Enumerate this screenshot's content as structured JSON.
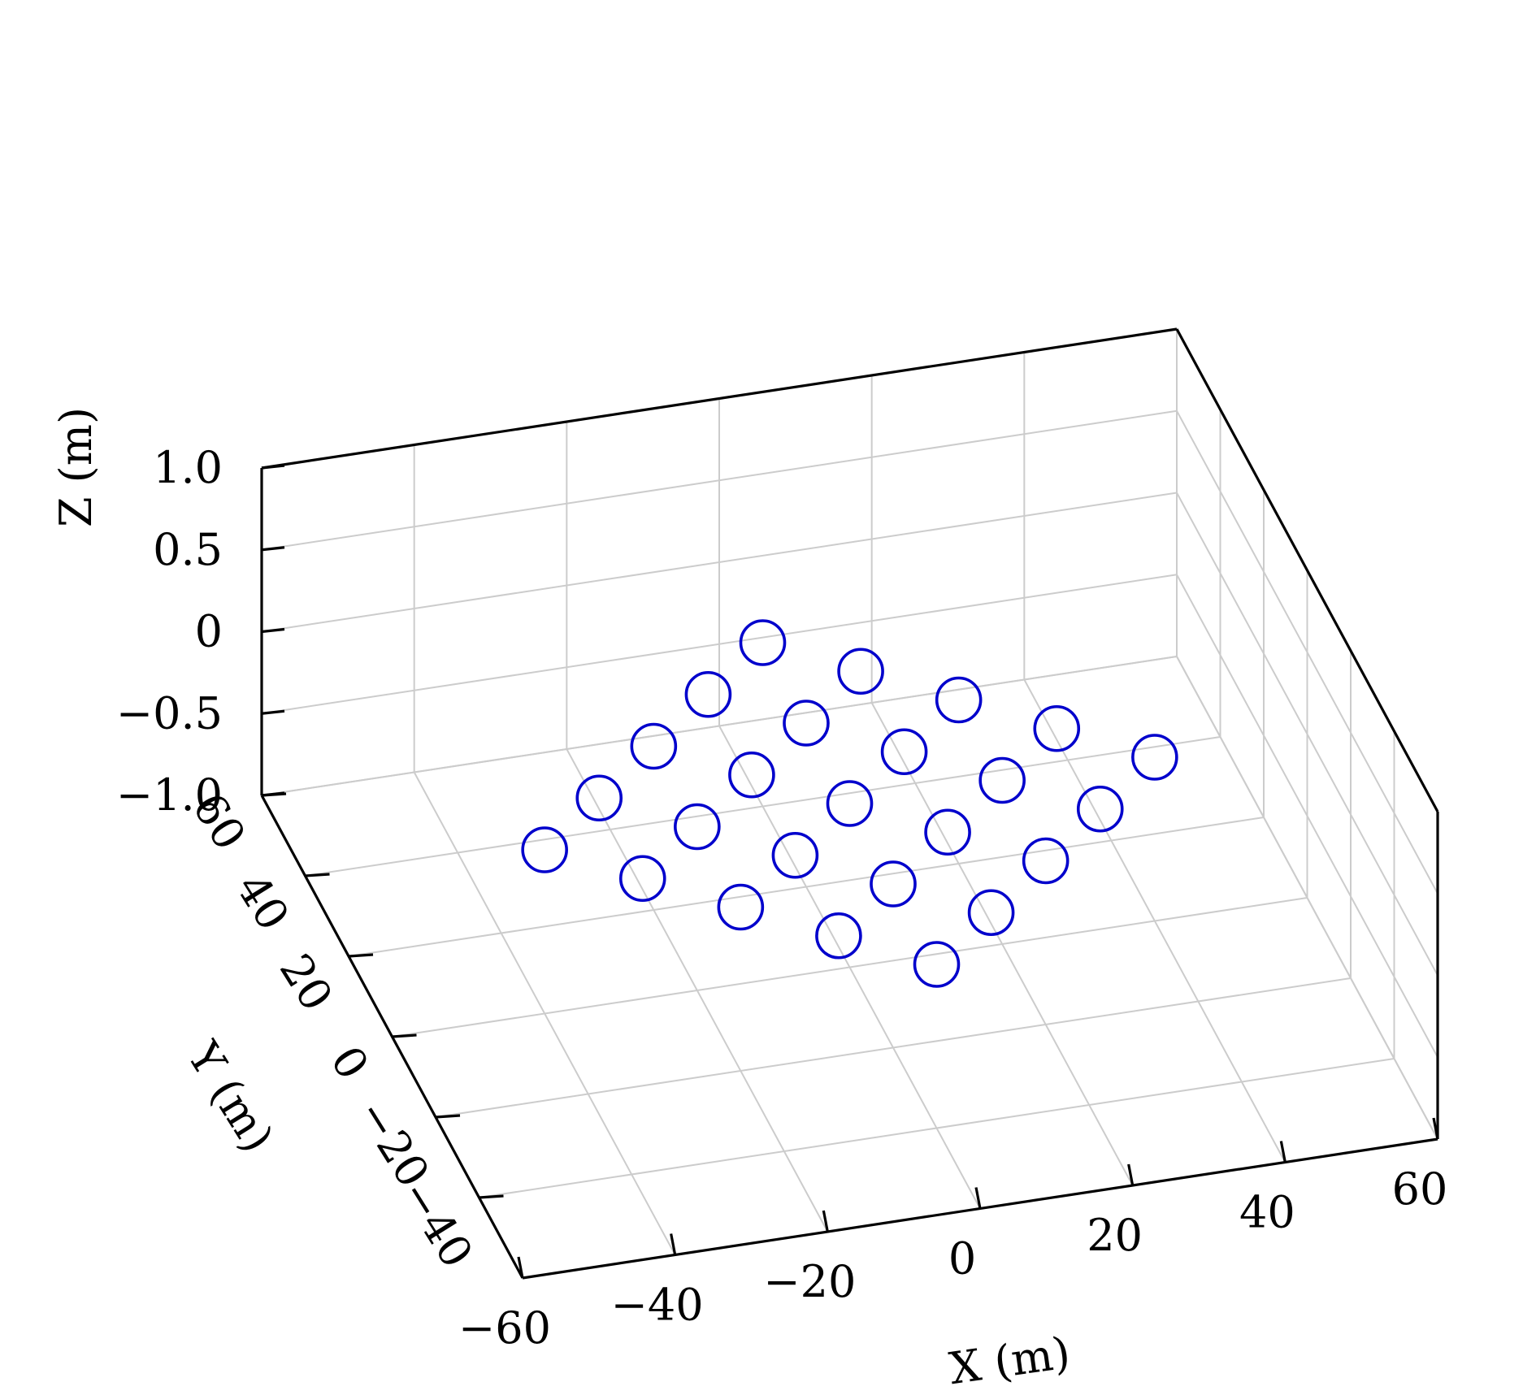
{
  "chart_data": {
    "type": "scatter3d",
    "title": "",
    "xlabel": "X (m)",
    "ylabel": "Y (m)",
    "zlabel": "Z (m)",
    "xlim": [
      -60,
      60
    ],
    "ylim": [
      -60,
      60
    ],
    "zlim": [
      -1.0,
      1.0
    ],
    "x_ticks": [
      "−60",
      "−40",
      "−20",
      "0",
      "20",
      "40",
      "60"
    ],
    "y_ticks": [
      "−40",
      "−20",
      "0",
      "20",
      "40",
      "60"
    ],
    "z_ticks": [
      "−1.0",
      "−0.5",
      "0",
      "0.5",
      "1.0"
    ],
    "grid": true,
    "marker": "open-circle",
    "marker_color": "#0000cc",
    "points": [
      {
        "x": 0,
        "y": 40,
        "z": 0
      },
      {
        "x": -10,
        "y": 30,
        "z": 0
      },
      {
        "x": 10,
        "y": 30,
        "z": 0
      },
      {
        "x": -20,
        "y": 20,
        "z": 0
      },
      {
        "x": 0,
        "y": 20,
        "z": 0
      },
      {
        "x": 20,
        "y": 20,
        "z": 0
      },
      {
        "x": -30,
        "y": 10,
        "z": 0
      },
      {
        "x": -10,
        "y": 10,
        "z": 0
      },
      {
        "x": 10,
        "y": 10,
        "z": 0
      },
      {
        "x": 30,
        "y": 10,
        "z": 0
      },
      {
        "x": -40,
        "y": 0,
        "z": 0
      },
      {
        "x": -20,
        "y": 0,
        "z": 0
      },
      {
        "x": 0,
        "y": 0,
        "z": 0
      },
      {
        "x": 20,
        "y": 0,
        "z": 0
      },
      {
        "x": 40,
        "y": 0,
        "z": 0
      },
      {
        "x": -30,
        "y": -10,
        "z": 0
      },
      {
        "x": -10,
        "y": -10,
        "z": 0
      },
      {
        "x": 10,
        "y": -10,
        "z": 0
      },
      {
        "x": 30,
        "y": -10,
        "z": 0
      },
      {
        "x": -20,
        "y": -20,
        "z": 0
      },
      {
        "x": 0,
        "y": -20,
        "z": 0
      },
      {
        "x": 20,
        "y": -20,
        "z": 0
      },
      {
        "x": -10,
        "y": -30,
        "z": 0
      },
      {
        "x": 10,
        "y": -30,
        "z": 0
      },
      {
        "x": 0,
        "y": -40,
        "z": 0
      }
    ]
  }
}
